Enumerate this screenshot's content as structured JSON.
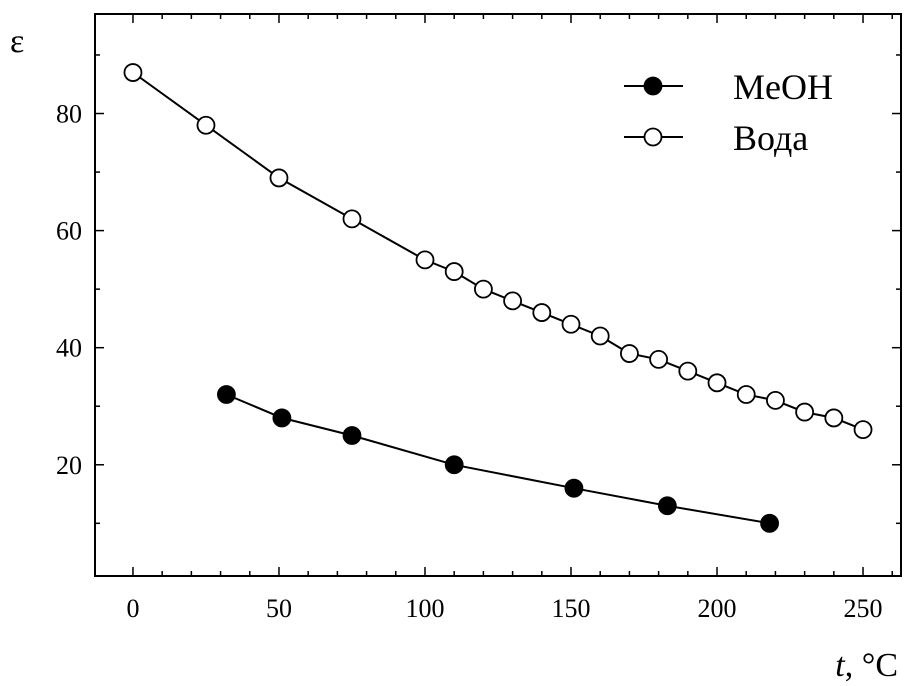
{
  "chart_data": {
    "type": "line",
    "x_label_var": "t",
    "x_label_unit": ", °C",
    "y_label": "ε",
    "xlim": [
      -13,
      263
    ],
    "ylim": [
      1,
      97
    ],
    "x_ticks": [
      0,
      50,
      100,
      150,
      200,
      250
    ],
    "y_ticks": [
      20,
      40,
      60,
      80
    ],
    "legend_position": "top-right",
    "grid": false,
    "series": [
      {
        "name": "MeOH",
        "marker": "filled-circle",
        "color": "#000000",
        "x": [
          32,
          51,
          75,
          110,
          151,
          183,
          218
        ],
        "y": [
          32,
          28,
          25,
          20,
          16,
          13,
          10
        ]
      },
      {
        "name": "Вода",
        "marker": "open-circle",
        "color": "#000000",
        "x": [
          0,
          25,
          50,
          75,
          100,
          110,
          120,
          130,
          140,
          150,
          160,
          170,
          180,
          190,
          200,
          210,
          220,
          230,
          240,
          250
        ],
        "y": [
          87,
          78,
          69,
          62,
          55,
          53,
          50,
          48,
          46,
          44,
          42,
          39,
          38,
          36,
          34,
          32,
          31,
          29,
          28,
          26
        ]
      }
    ]
  }
}
